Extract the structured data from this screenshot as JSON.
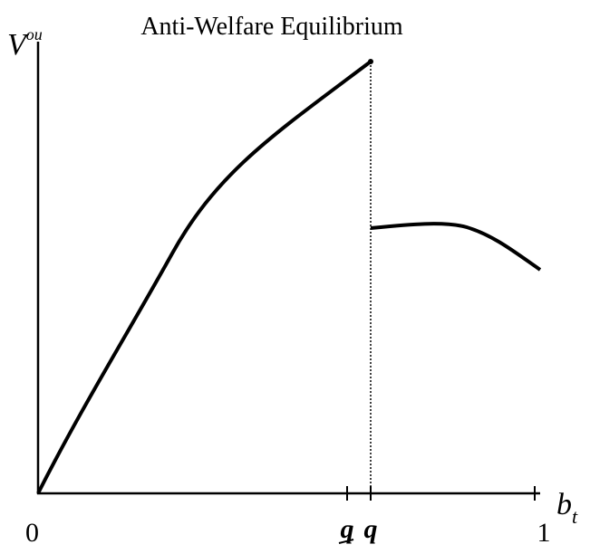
{
  "title": "Anti-Welfare Equilibrium",
  "y_axis_label": {
    "base": "V",
    "superscript": "ou"
  },
  "x_axis_label": {
    "base": "b",
    "subscript": "t"
  },
  "x_tick_labels": [
    "0",
    "q",
    "q",
    "1"
  ]
}
